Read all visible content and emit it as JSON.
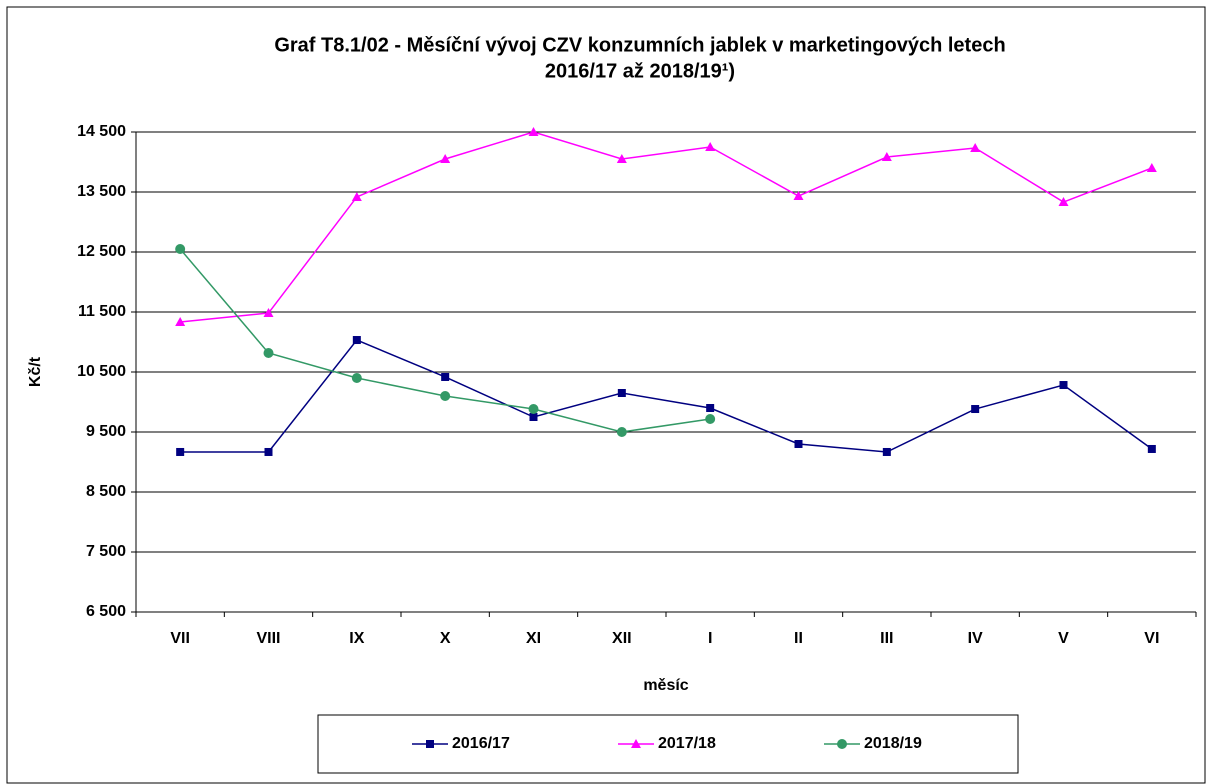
{
  "chart_data": {
    "type": "line",
    "title": "Graf T8.1/02 - Měsíční vývoj CZV konzumních jablek v marketingových letech",
    "subtitle": "2016/17 až 2018/19¹)",
    "y_label": "Kč/t",
    "x_label": "měsíc",
    "categories": [
      "VII",
      "VIII",
      "IX",
      "X",
      "XI",
      "XII",
      "I",
      "II",
      "III",
      "IV",
      "V",
      "VI"
    ],
    "ylim": [
      6500,
      14500
    ],
    "yticks": [
      {
        "value": 6500,
        "label": "6 500"
      },
      {
        "value": 7500,
        "label": "7 500"
      },
      {
        "value": 8500,
        "label": "8 500"
      },
      {
        "value": 9500,
        "label": "9 500"
      },
      {
        "value": 10500,
        "label": "10 500"
      },
      {
        "value": 11500,
        "label": "11 500"
      },
      {
        "value": 12500,
        "label": "12 500"
      },
      {
        "value": 13500,
        "label": "13 500"
      },
      {
        "value": 14500,
        "label": "14 500"
      }
    ],
    "grid": true,
    "legend": "bottom",
    "series": [
      {
        "name": "2016/17",
        "color": "#000080",
        "marker": "square",
        "values": [
          9167,
          9167,
          11033,
          10417,
          9750,
          10150,
          9900,
          9300,
          9167,
          9883,
          10283,
          9217
        ]
      },
      {
        "name": "2017/18",
        "color": "#ff00ff",
        "marker": "triangle",
        "values": [
          11333,
          11483,
          13417,
          14050,
          14500,
          14050,
          14250,
          13433,
          14083,
          14233,
          13333,
          13900
        ]
      },
      {
        "name": "2018/19",
        "color": "#339966",
        "marker": "circle",
        "values": [
          12550,
          10817,
          10400,
          10100,
          9883,
          9500,
          9717,
          null,
          null,
          null,
          null,
          null
        ]
      }
    ]
  }
}
